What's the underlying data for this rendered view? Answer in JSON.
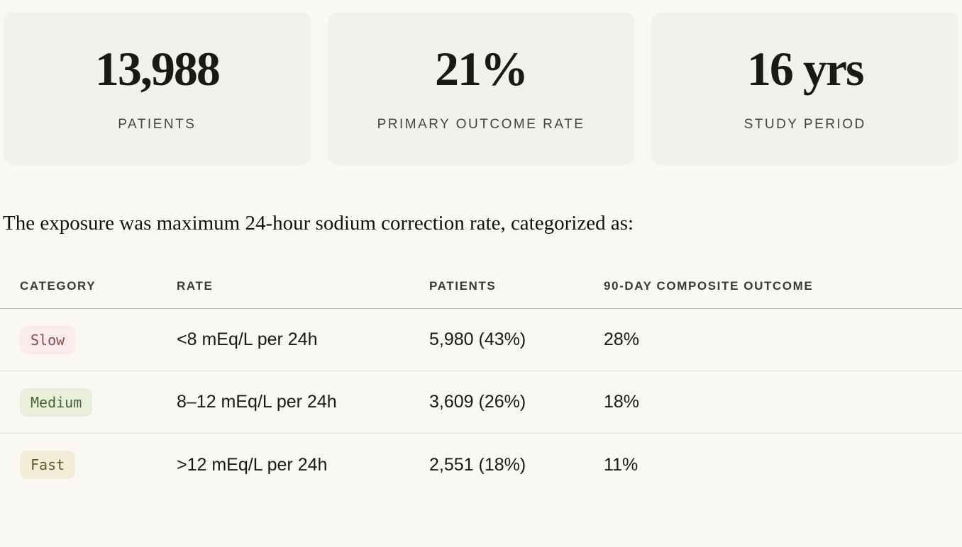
{
  "stats": {
    "cards": [
      {
        "value": "13,988",
        "label": "PATIENTS"
      },
      {
        "value": "21%",
        "label": "PRIMARY OUTCOME RATE"
      },
      {
        "value": "16 yrs",
        "label": "STUDY PERIOD"
      }
    ]
  },
  "intro": {
    "text": "The exposure was maximum 24-hour sodium correction rate, categorized as:"
  },
  "table": {
    "headers": {
      "category": "CATEGORY",
      "rate": "RATE",
      "patients": "PATIENTS",
      "outcome": "90-DAY COMPOSITE OUTCOME"
    },
    "rows": [
      {
        "category": "Slow",
        "rate": "<8 mEq/L per 24h",
        "patients": "5,980 (43%)",
        "outcome": "28%",
        "badge": {
          "bg": "#f8ecec",
          "fg": "#8e4a4a"
        }
      },
      {
        "category": "Medium",
        "rate": "8–12 mEq/L per 24h",
        "patients": "3,609 (26%)",
        "outcome": "18%",
        "badge": {
          "bg": "#e8efdd",
          "fg": "#42662e"
        }
      },
      {
        "category": "Fast",
        "rate": ">12 mEq/L per 24h",
        "patients": "2,551 (18%)",
        "outcome": "11%",
        "badge": {
          "bg": "#f3ecd8",
          "fg": "#665a28"
        }
      }
    ]
  },
  "colors": {
    "page_bg": "#faf8f2",
    "card_bg": "#f2f1ec",
    "text_primary": "#191917",
    "text_secondary": "#45443f",
    "header_border": "#b5b2ab",
    "row_border": "#dedbd3"
  }
}
